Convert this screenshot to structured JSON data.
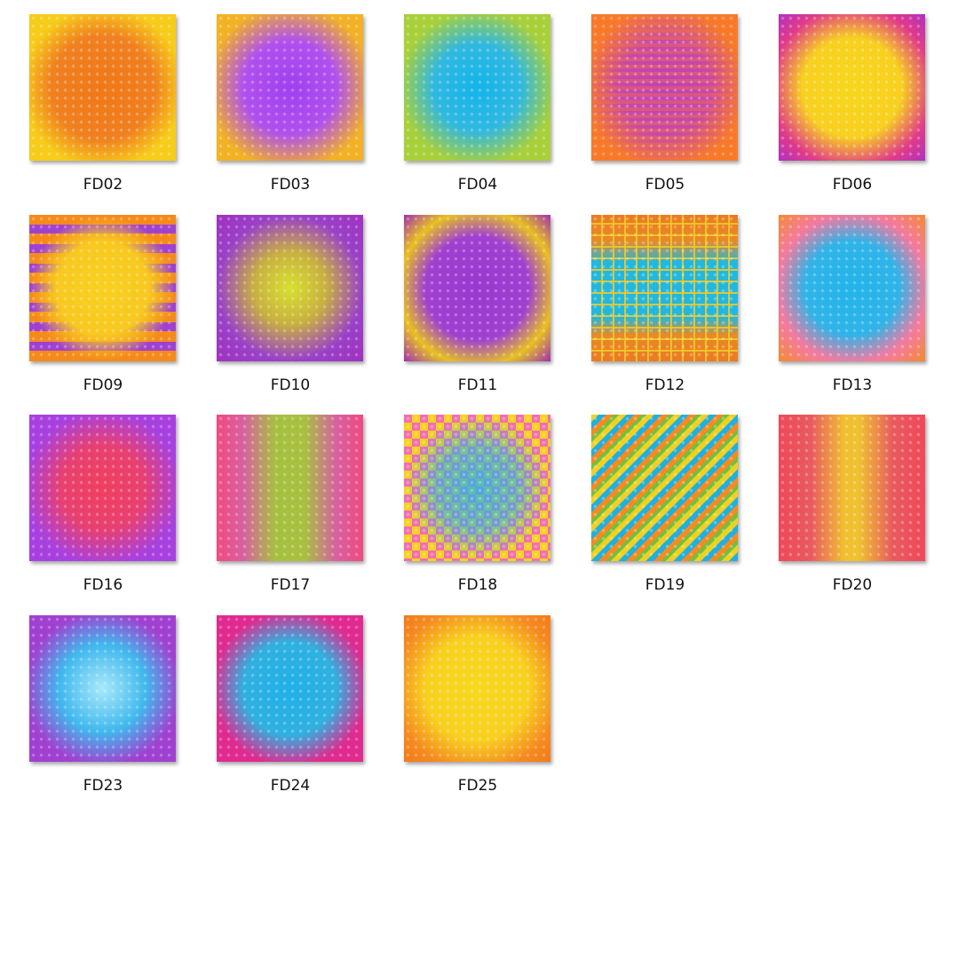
{
  "items": [
    {
      "name": "FD02"
    },
    {
      "name": "FD03"
    },
    {
      "name": "FD04"
    },
    {
      "name": "FD05"
    },
    {
      "name": "FD06"
    },
    {
      "name": "FD09"
    },
    {
      "name": "FD10"
    },
    {
      "name": "FD11"
    },
    {
      "name": "FD12"
    },
    {
      "name": "FD13"
    },
    {
      "name": "FD16"
    },
    {
      "name": "FD17"
    },
    {
      "name": "FD18"
    },
    {
      "name": "FD19"
    },
    {
      "name": "FD20"
    },
    {
      "name": "FD23"
    },
    {
      "name": "FD24"
    },
    {
      "name": "FD25"
    }
  ]
}
